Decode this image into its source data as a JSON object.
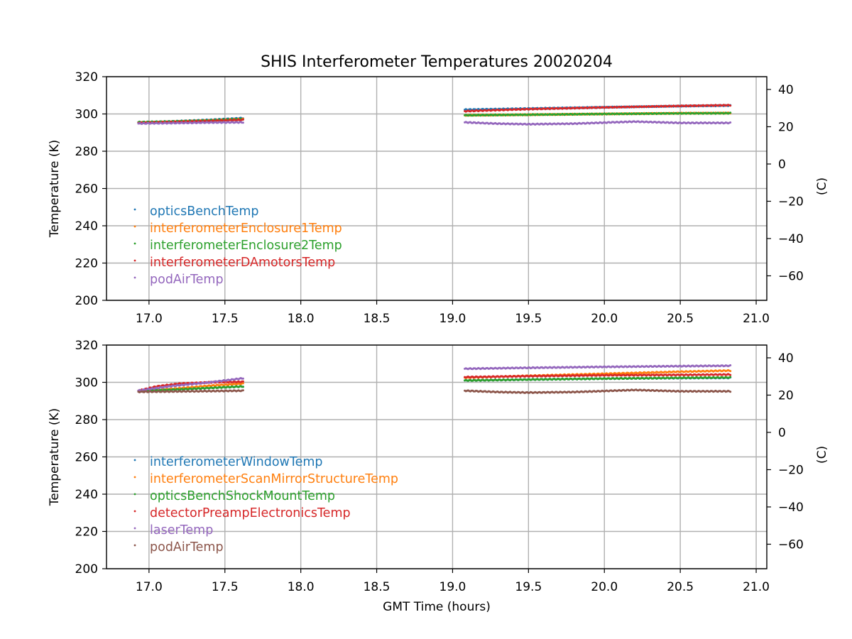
{
  "figure": {
    "title": "SHIS Interferometer Temperatures 20020204",
    "xlabel": "GMT Time (hours)"
  },
  "chart_data": [
    {
      "type": "scatter",
      "ylabel": "Temperature (K)",
      "ylabel_right": "(C)",
      "xlim": [
        16.72,
        21.07
      ],
      "ylim": [
        200,
        320
      ],
      "x_ticks": [
        17.0,
        17.5,
        18.0,
        18.5,
        19.0,
        19.5,
        20.0,
        20.5,
        21.0
      ],
      "x_tick_labels": [
        "17.0",
        "17.5",
        "18.0",
        "18.5",
        "19.0",
        "19.5",
        "20.0",
        "20.5",
        "21.0"
      ],
      "y_ticks": [
        200,
        220,
        240,
        260,
        280,
        300,
        320
      ],
      "y_tick_labels": [
        "200",
        "220",
        "240",
        "260",
        "280",
        "300",
        "320"
      ],
      "y_right_ticks": [
        40,
        20,
        0,
        -20,
        -40,
        -60
      ],
      "y_right_tick_labels": [
        "40",
        "20",
        "0",
        "−20",
        "−40",
        "−60"
      ],
      "grid": true,
      "legend_position": "left",
      "series": [
        {
          "name": "opticsBenchTemp",
          "color": "#1f77b4",
          "segments": [
            {
              "x": [
                16.93,
                17.15,
                17.4,
                17.62
              ],
              "y": [
                295.5,
                296.0,
                296.8,
                297.8
              ]
            },
            {
              "x": [
                19.08,
                19.5,
                20.0,
                20.5,
                20.83
              ],
              "y": [
                302.3,
                302.9,
                303.6,
                304.2,
                304.5
              ]
            }
          ]
        },
        {
          "name": "interferometerEnclosure1Temp",
          "color": "#ff7f0e",
          "segments": [
            {
              "x": [
                16.93,
                17.15,
                17.4,
                17.62
              ],
              "y": [
                295.3,
                295.8,
                296.5,
                297.3
              ]
            },
            {
              "x": [
                19.08,
                19.5,
                20.0,
                20.5,
                20.83
              ],
              "y": [
                299.3,
                299.6,
                300.0,
                300.4,
                300.5
              ]
            }
          ]
        },
        {
          "name": "interferometerEnclosure2Temp",
          "color": "#2ca02c",
          "segments": [
            {
              "x": [
                16.93,
                17.15,
                17.4,
                17.62
              ],
              "y": [
                295.6,
                295.9,
                296.5,
                297.2
              ]
            },
            {
              "x": [
                19.08,
                19.5,
                20.0,
                20.5,
                20.83
              ],
              "y": [
                299.3,
                299.6,
                300.0,
                300.3,
                300.4
              ]
            }
          ]
        },
        {
          "name": "interferometerDAmotorsTemp",
          "color": "#d62728",
          "segments": [
            {
              "x": [
                16.93,
                17.15,
                17.4,
                17.62
              ],
              "y": [
                295.2,
                295.6,
                296.2,
                296.8
              ]
            },
            {
              "x": [
                19.08,
                19.5,
                20.0,
                20.5,
                20.83
              ],
              "y": [
                301.5,
                302.6,
                303.5,
                304.3,
                304.7
              ]
            }
          ]
        },
        {
          "name": "podAirTemp",
          "color": "#9467bd",
          "segments": [
            {
              "x": [
                16.93,
                17.15,
                17.4,
                17.62
              ],
              "y": [
                294.9,
                295.1,
                295.4,
                295.5
              ]
            },
            {
              "x": [
                19.08,
                19.3,
                19.5,
                19.8,
                20.2,
                20.5,
                20.83
              ],
              "y": [
                295.5,
                294.8,
                294.5,
                294.8,
                295.9,
                295.2,
                295.2
              ]
            }
          ]
        }
      ]
    },
    {
      "type": "scatter",
      "ylabel": "Temperature (K)",
      "ylabel_right": "(C)",
      "xlim": [
        16.72,
        21.07
      ],
      "ylim": [
        200,
        320
      ],
      "x_ticks": [
        17.0,
        17.5,
        18.0,
        18.5,
        19.0,
        19.5,
        20.0,
        20.5,
        21.0
      ],
      "x_tick_labels": [
        "17.0",
        "17.5",
        "18.0",
        "18.5",
        "19.0",
        "19.5",
        "20.0",
        "20.5",
        "21.0"
      ],
      "y_ticks": [
        200,
        220,
        240,
        260,
        280,
        300,
        320
      ],
      "y_tick_labels": [
        "200",
        "220",
        "240",
        "260",
        "280",
        "300",
        "320"
      ],
      "y_right_ticks": [
        40,
        20,
        0,
        -20,
        -40,
        -60
      ],
      "y_right_tick_labels": [
        "40",
        "20",
        "0",
        "−20",
        "−40",
        "−60"
      ],
      "grid": true,
      "legend_position": "left",
      "series": [
        {
          "name": "interferometerWindowTemp",
          "color": "#1f77b4",
          "segments": [
            {
              "x": [
                16.93,
                17.2,
                17.4,
                17.62
              ],
              "y": [
                295.3,
                296.2,
                297.0,
                297.8
              ]
            },
            {
              "x": [
                19.08,
                19.5,
                20.0,
                20.5,
                20.83
              ],
              "y": [
                301.0,
                301.5,
                302.0,
                302.3,
                302.4
              ]
            }
          ]
        },
        {
          "name": "interferometerScanMirrorStructureTemp",
          "color": "#ff7f0e",
          "segments": [
            {
              "x": [
                16.93,
                17.2,
                17.4,
                17.62
              ],
              "y": [
                295.3,
                296.8,
                298.2,
                299.3
              ]
            },
            {
              "x": [
                19.08,
                19.5,
                20.0,
                20.5,
                20.83
              ],
              "y": [
                302.5,
                303.5,
                304.6,
                305.7,
                306.3
              ]
            }
          ]
        },
        {
          "name": "opticsBenchShockMountTemp",
          "color": "#2ca02c",
          "segments": [
            {
              "x": [
                16.93,
                17.2,
                17.4,
                17.62
              ],
              "y": [
                295.3,
                296.2,
                297.0,
                297.8
              ]
            },
            {
              "x": [
                19.08,
                19.5,
                20.0,
                20.5,
                20.83
              ],
              "y": [
                301.0,
                301.5,
                302.0,
                302.4,
                302.6
              ]
            }
          ]
        },
        {
          "name": "detectorPreampElectronicsTemp",
          "color": "#d62728",
          "segments": [
            {
              "x": [
                16.93,
                17.05,
                17.2,
                17.4,
                17.62
              ],
              "y": [
                295.5,
                297.8,
                299.3,
                300.0,
                300.3
              ]
            },
            {
              "x": [
                19.08,
                19.5,
                20.0,
                20.5,
                20.83
              ],
              "y": [
                302.8,
                303.3,
                303.8,
                304.0,
                304.2
              ]
            }
          ]
        },
        {
          "name": "laserTemp",
          "color": "#9467bd",
          "segments": [
            {
              "x": [
                16.93,
                17.15,
                17.4,
                17.62
              ],
              "y": [
                295.6,
                298.0,
                300.0,
                302.2
              ]
            },
            {
              "x": [
                19.08,
                19.5,
                20.0,
                20.5,
                20.83
              ],
              "y": [
                307.3,
                307.8,
                308.3,
                308.7,
                308.9
              ]
            }
          ]
        },
        {
          "name": "podAirTemp",
          "color": "#8c564b",
          "segments": [
            {
              "x": [
                16.93,
                17.15,
                17.4,
                17.62
              ],
              "y": [
                294.9,
                295.1,
                295.3,
                295.5
              ]
            },
            {
              "x": [
                19.08,
                19.3,
                19.5,
                19.8,
                20.2,
                20.5,
                20.83
              ],
              "y": [
                295.5,
                294.8,
                294.5,
                294.8,
                295.9,
                295.2,
                295.2
              ]
            }
          ]
        }
      ]
    }
  ]
}
